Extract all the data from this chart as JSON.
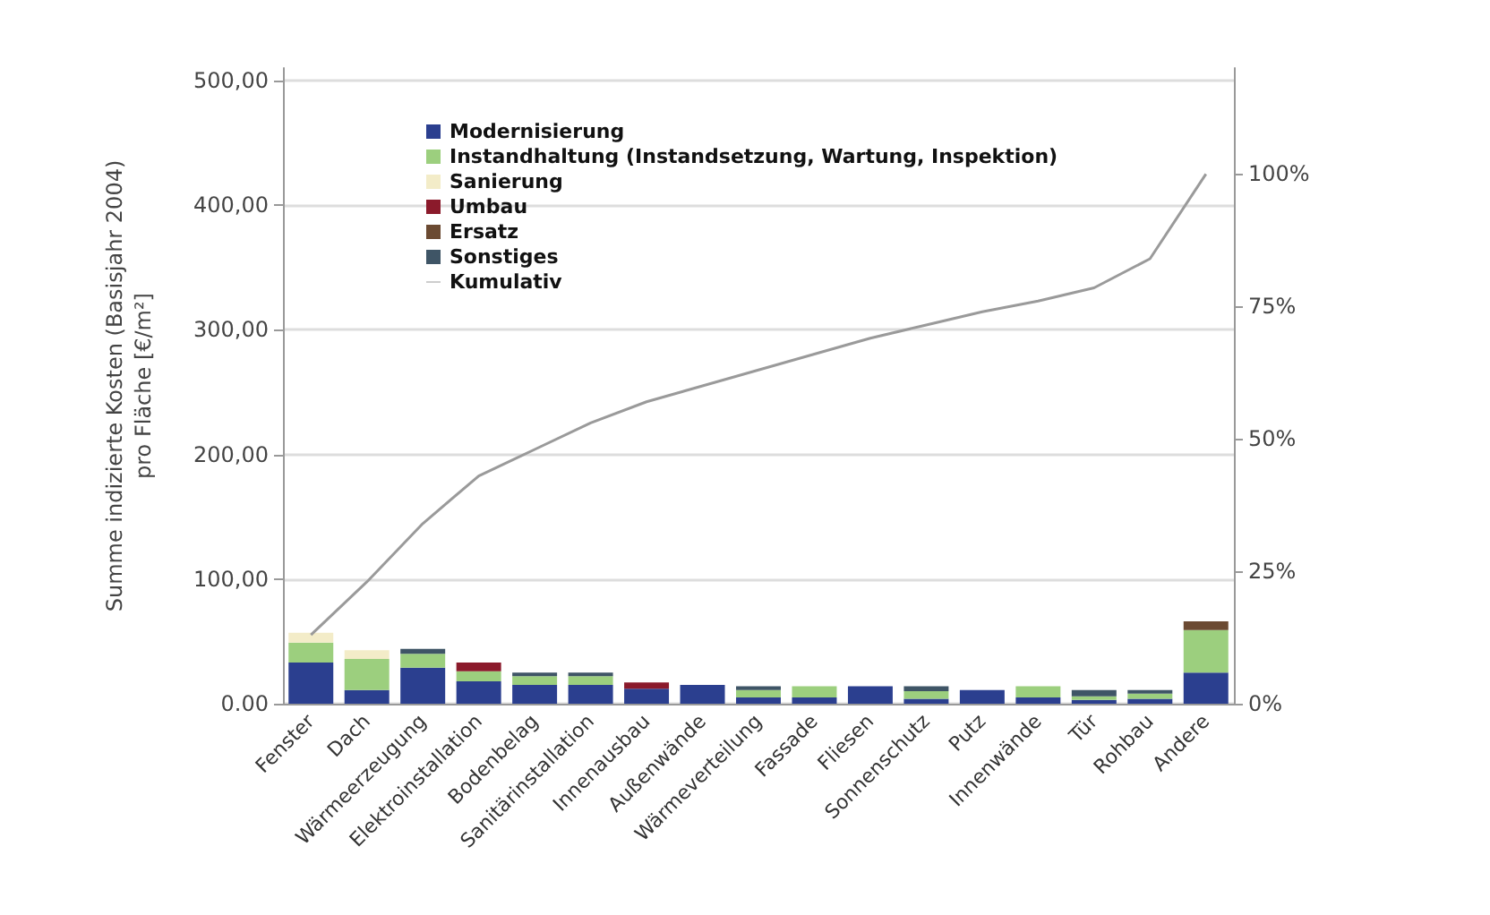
{
  "chart_data": {
    "type": "bar",
    "stacked": true,
    "ylabel": "Summe indizierte Kosten (Basisjahr 2004)\npro Fläche [€/m²]",
    "categories": [
      "Fenster",
      "Dach",
      "Wärmeerzeugung",
      "Elektroinstallation",
      "Bodenbelag",
      "Sanitärinstallation",
      "Innenausbau",
      "Außenwände",
      "Wärmeverteilung",
      "Fassade",
      "Fliesen",
      "Sonnenschutz",
      "Putz",
      "Innenwände",
      "Tür",
      "Rohbau",
      "Andere"
    ],
    "series": [
      {
        "name": "Modernisierung",
        "color": "#2b3f8f",
        "values": [
          33,
          11,
          29,
          18,
          15,
          15,
          12,
          15,
          5,
          5,
          14,
          4,
          11,
          5,
          3,
          4,
          25
        ]
      },
      {
        "name": "Instandhaltung (Instandsetzung, Wartung, Inspektion)",
        "color": "#9ccf7e",
        "values": [
          16,
          25,
          11,
          8,
          7,
          7,
          0,
          0,
          6,
          9,
          0,
          6,
          0,
          9,
          3,
          4,
          34
        ]
      },
      {
        "name": "Sanierung",
        "color": "#f3ecc8",
        "values": [
          8,
          7,
          0,
          0,
          0,
          0,
          0,
          0,
          0,
          0,
          0,
          0,
          0,
          0,
          0,
          0,
          0
        ]
      },
      {
        "name": "Umbau",
        "color": "#8b1a2b",
        "values": [
          0,
          0,
          0,
          7,
          0,
          0,
          5,
          0,
          0,
          0,
          0,
          0,
          0,
          0,
          0,
          0,
          0
        ]
      },
      {
        "name": "Ersatz",
        "color": "#6b4a32",
        "values": [
          0,
          0,
          0,
          0,
          0,
          0,
          0,
          0,
          0,
          0,
          0,
          0,
          0,
          0,
          0,
          0,
          7
        ]
      },
      {
        "name": "Sonstiges",
        "color": "#3f5566",
        "values": [
          0,
          0,
          4,
          0,
          3,
          3,
          0,
          0,
          3,
          0,
          0,
          4,
          0,
          0,
          5,
          3,
          0
        ]
      },
      {
        "name": "Kumulativ",
        "type": "line",
        "axis": "y2",
        "color": "#9a9a9a",
        "values": [
          13,
          23,
          34,
          43,
          48,
          53,
          57,
          60,
          63,
          66,
          69,
          71.5,
          74,
          76,
          78.5,
          84,
          100
        ]
      }
    ],
    "ylim": [
      0,
      510
    ],
    "yticks": [
      {
        "value": 0,
        "label": "0.00"
      },
      {
        "value": 100,
        "label": "100,00"
      },
      {
        "value": 200,
        "label": "200,00"
      },
      {
        "value": 300,
        "label": "300,00"
      },
      {
        "value": 400,
        "label": "400,00"
      },
      {
        "value": 500,
        "label": "500,00"
      }
    ],
    "y2lim": [
      0,
      120
    ],
    "y2ticks": [
      {
        "value": 0,
        "label": "0%"
      },
      {
        "value": 25,
        "label": "25%"
      },
      {
        "value": 50,
        "label": "50%"
      },
      {
        "value": 75,
        "label": "75%"
      },
      {
        "value": 100,
        "label": "100%"
      }
    ],
    "grid": "y",
    "legend": "top left",
    "marker": "none",
    "line_style": "solid"
  }
}
